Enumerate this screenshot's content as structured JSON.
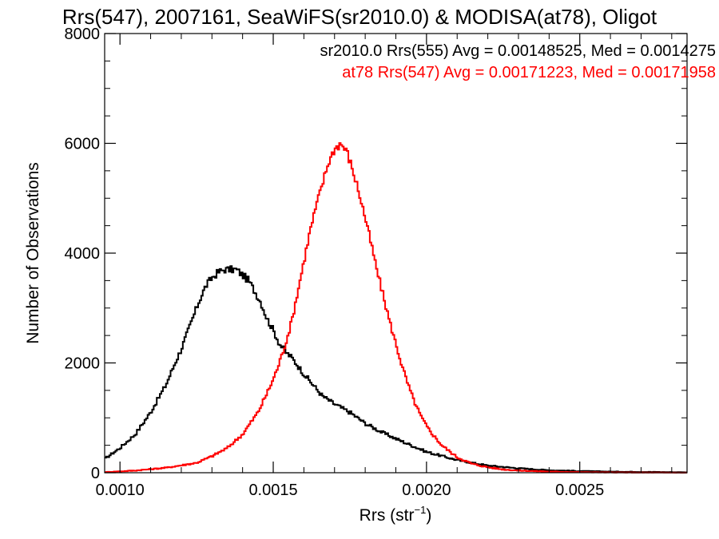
{
  "chart_data": {
    "type": "line",
    "title": "Rrs(547), 2007161, SeaWiFS(sr2010.0) & MODISA(at78), Oligot",
    "xlabel": "Rrs (str",
    "xlabel_superscript": "−1",
    "xlabel_suffix": ")",
    "ylabel": "Number of Observations",
    "xlim": [
      0.00095,
      0.00285
    ],
    "ylim": [
      0,
      8000
    ],
    "x_ticks": [
      0.001,
      0.0015,
      0.002,
      0.0025
    ],
    "x_tick_labels": [
      "0.0010",
      "0.0015",
      "0.0020",
      "0.0025"
    ],
    "y_ticks": [
      0,
      2000,
      4000,
      6000,
      8000
    ],
    "y_tick_labels": [
      "0",
      "2000",
      "4000",
      "6000",
      "8000"
    ],
    "grid": false,
    "legend_position": "top-right",
    "series": [
      {
        "name": "sr2010.0 Rrs(555) Avg = 0.00148525, Med = 0.0014275",
        "color": "#000000",
        "x": [
          0.00095,
          0.001,
          0.00105,
          0.0011,
          0.00115,
          0.00118,
          0.0012,
          0.00122,
          0.00124,
          0.00126,
          0.00128,
          0.0013,
          0.00132,
          0.00134,
          0.00136,
          0.00138,
          0.0014,
          0.00142,
          0.00144,
          0.00146,
          0.00148,
          0.0015,
          0.00152,
          0.00154,
          0.00156,
          0.00158,
          0.0016,
          0.00163,
          0.00166,
          0.0017,
          0.00175,
          0.0018,
          0.00185,
          0.0019,
          0.00195,
          0.002,
          0.0021,
          0.0022,
          0.0023,
          0.0024,
          0.0025,
          0.0026,
          0.0027,
          0.00285
        ],
        "y": [
          250,
          450,
          700,
          1100,
          1600,
          2000,
          2250,
          2550,
          2850,
          3150,
          3400,
          3550,
          3650,
          3700,
          3700,
          3700,
          3600,
          3500,
          3300,
          3100,
          2800,
          2600,
          2350,
          2200,
          2100,
          1950,
          1800,
          1600,
          1400,
          1250,
          1100,
          900,
          750,
          620,
          500,
          380,
          230,
          130,
          80,
          45,
          30,
          20,
          15,
          8
        ]
      },
      {
        "name": "at78 Rrs(547) Avg = 0.00171223, Med = 0.00171958",
        "color": "#ff0000",
        "x": [
          0.00095,
          0.00105,
          0.00115,
          0.00125,
          0.0013,
          0.00135,
          0.0014,
          0.00145,
          0.00148,
          0.0015,
          0.00152,
          0.00154,
          0.00156,
          0.00158,
          0.0016,
          0.00162,
          0.00164,
          0.00166,
          0.00168,
          0.0017,
          0.00172,
          0.00174,
          0.00176,
          0.00178,
          0.0018,
          0.00182,
          0.00184,
          0.00186,
          0.00188,
          0.0019,
          0.00192,
          0.00194,
          0.00196,
          0.00198,
          0.002,
          0.00202,
          0.00205,
          0.0021,
          0.00215,
          0.0022,
          0.00225,
          0.0023,
          0.0024,
          0.0025,
          0.0026,
          0.0027,
          0.00285
        ],
        "y": [
          10,
          40,
          90,
          180,
          300,
          450,
          700,
          1100,
          1450,
          1700,
          2000,
          2350,
          2750,
          3300,
          3850,
          4400,
          4850,
          5250,
          5650,
          5900,
          6000,
          5850,
          5500,
          5100,
          4650,
          4150,
          3650,
          3200,
          2750,
          2350,
          1950,
          1600,
          1300,
          1050,
          850,
          700,
          500,
          280,
          160,
          100,
          60,
          40,
          20,
          10,
          5,
          3,
          1
        ]
      }
    ]
  }
}
